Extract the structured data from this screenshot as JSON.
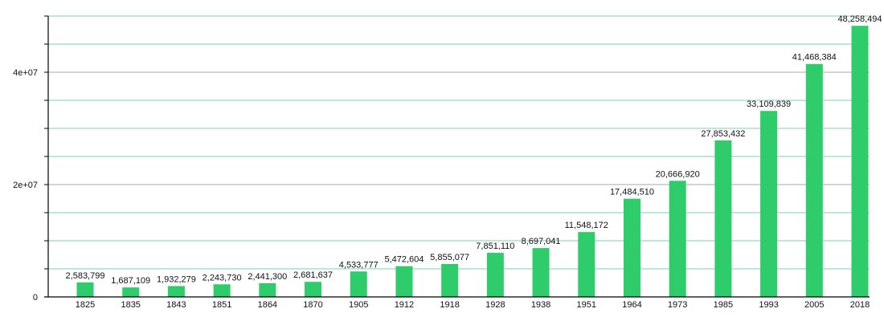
{
  "chart_data": {
    "type": "bar",
    "title": "",
    "xlabel": "",
    "ylabel": "",
    "ylim": [
      0,
      50000000
    ],
    "grid": true,
    "y_ticks": [
      {
        "value": 0,
        "label": "0"
      },
      {
        "value": 20000000,
        "label": "2e+07"
      },
      {
        "value": 40000000,
        "label": "4e+07"
      }
    ],
    "minor_grid_step": 5000000,
    "categories": [
      "1825",
      "1835",
      "1843",
      "1851",
      "1864",
      "1870",
      "1905",
      "1912",
      "1918",
      "1928",
      "1938",
      "1951",
      "1964",
      "1973",
      "1985",
      "1993",
      "2005",
      "2018"
    ],
    "values": [
      2583799,
      1687109,
      1932279,
      2243730,
      2441300,
      2681637,
      4533777,
      5472604,
      5855077,
      7851110,
      8697041,
      11548172,
      17484510,
      20666920,
      27853432,
      33109839,
      41468384,
      48258494
    ],
    "data_labels": [
      "2,583,799",
      "1,687,109",
      "1,932,279",
      "2,243,730",
      "2,441,300",
      "2,681,637",
      "4,533,777",
      "5,472,604",
      "5,855,077",
      "7,851,110",
      "8,697,041",
      "11,548,172",
      "17,484,510",
      "20,666,920",
      "27,853,432",
      "33,109,839",
      "41,468,384",
      "48,258,494"
    ],
    "colors": {
      "bar": "#2ecc6a",
      "major_grid": "#aaaaaa",
      "minor_grid": "#7fcfb5",
      "axis": "#000000"
    }
  }
}
